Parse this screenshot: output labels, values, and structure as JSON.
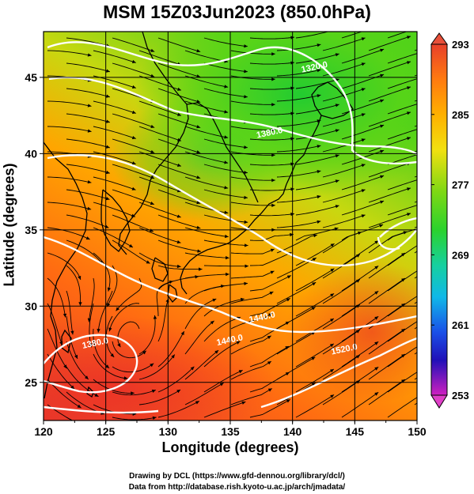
{
  "title": "MSM 15Z03Jun2023 (850.0hPa)",
  "map": {
    "xlabel": "Longitude (degrees)",
    "ylabel": "Latitude  (degrees)",
    "xlim": [
      120,
      150
    ],
    "ylim": [
      22.5,
      48
    ],
    "xticks": [
      "120",
      "125",
      "130",
      "135",
      "140",
      "145",
      "150"
    ],
    "yticks": [
      "25",
      "30",
      "35",
      "40",
      "45"
    ],
    "contour_labels": [
      {
        "text": "1320.0",
        "lon": 141.8,
        "lat": 45.5
      },
      {
        "text": "1380.0",
        "lon": 138.2,
        "lat": 41.2
      },
      {
        "text": "1380.0",
        "lon": 124.2,
        "lat": 27.4
      },
      {
        "text": "1440.0",
        "lon": 137.6,
        "lat": 29.1
      },
      {
        "text": "1440.0",
        "lon": 135.0,
        "lat": 27.6
      },
      {
        "text": "1520.0",
        "lon": 144.2,
        "lat": 27.0
      }
    ]
  },
  "colorbar": {
    "labels": [
      "293",
      "285",
      "277",
      "269",
      "261",
      "253"
    ],
    "vmin": 253,
    "vmax": 293
  },
  "credits": [
    "Drawing by DCL (https://www.gfd-dennou.org/library/dcl/)",
    "Data from http://database.rish.kyoto-u.ac.jp/arch/jmadata/"
  ],
  "colors": {
    "warm": "#e8402a",
    "mid": "#ff9a00",
    "cool": "#58d01a",
    "contour": "#ffffff"
  }
}
